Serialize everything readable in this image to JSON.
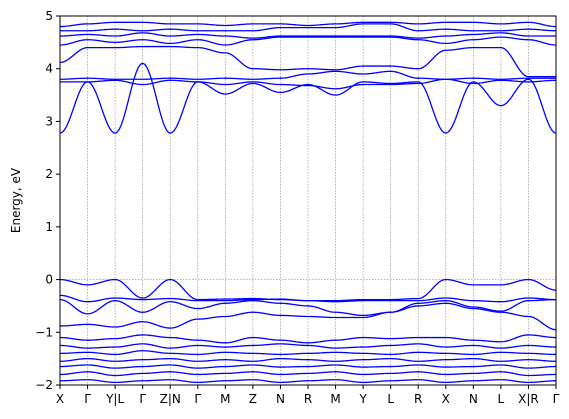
{
  "chart_data": {
    "type": "line",
    "ylabel": "Energy, eV",
    "xlabel": "",
    "ylim": [
      -2,
      5
    ],
    "y_ticks": [
      -2,
      -1,
      0,
      1,
      2,
      3,
      4,
      5
    ],
    "k_points": [
      "X",
      "Γ",
      "Y|L",
      "Γ",
      "Z|N",
      "Γ",
      "M",
      "Z",
      "N",
      "R",
      "M",
      "Y",
      "L",
      "R",
      "X",
      "N",
      "L",
      "X|R",
      "Γ"
    ],
    "fermi_level": 0,
    "grid": "vertical dotted lines at k-points",
    "line_color": "#0000ff",
    "series": [
      {
        "values": [
          0.0,
          -0.1,
          0.0,
          -0.35,
          0.0,
          -0.38,
          -0.37,
          -0.36,
          -0.38,
          -0.4,
          -0.4,
          -0.38,
          -0.38,
          -0.36,
          0.0,
          -0.1,
          -0.1,
          0.0,
          -0.2
        ]
      },
      {
        "values": [
          -0.3,
          -0.42,
          -0.35,
          -0.38,
          -0.36,
          -0.4,
          -0.4,
          -0.38,
          -0.37,
          -0.4,
          -0.42,
          -0.4,
          -0.4,
          -0.4,
          -0.35,
          -0.4,
          -0.42,
          -0.35,
          -0.38
        ]
      },
      {
        "values": [
          -0.38,
          -0.65,
          -0.4,
          -0.62,
          -0.42,
          -0.55,
          -0.45,
          -0.4,
          -0.45,
          -0.5,
          -0.62,
          -0.68,
          -0.62,
          -0.45,
          -0.4,
          -0.52,
          -0.6,
          -0.4,
          -0.38
        ]
      },
      {
        "values": [
          -0.88,
          -0.85,
          -0.9,
          -0.8,
          -0.92,
          -0.75,
          -0.7,
          -0.62,
          -0.68,
          -0.7,
          -0.72,
          -0.72,
          -0.62,
          -0.5,
          -0.45,
          -0.55,
          -0.62,
          -0.7,
          -0.95
        ]
      },
      {
        "values": [
          -1.1,
          -1.15,
          -1.12,
          -1.05,
          -1.1,
          -1.15,
          -1.2,
          -1.1,
          -1.15,
          -1.2,
          -1.15,
          -1.1,
          -1.12,
          -1.1,
          -1.1,
          -1.15,
          -1.18,
          -1.05,
          -1.1
        ]
      },
      {
        "values": [
          -1.25,
          -1.3,
          -1.28,
          -1.22,
          -1.3,
          -1.25,
          -1.28,
          -1.25,
          -1.22,
          -1.25,
          -1.3,
          -1.28,
          -1.25,
          -1.22,
          -1.28,
          -1.25,
          -1.3,
          -1.25,
          -1.28
        ]
      },
      {
        "values": [
          -1.4,
          -1.38,
          -1.42,
          -1.35,
          -1.4,
          -1.42,
          -1.38,
          -1.4,
          -1.42,
          -1.4,
          -1.38,
          -1.4,
          -1.42,
          -1.38,
          -1.4,
          -1.42,
          -1.38,
          -1.4,
          -1.42
        ]
      },
      {
        "values": [
          -1.55,
          -1.5,
          -1.55,
          -1.52,
          -1.5,
          -1.55,
          -1.52,
          -1.55,
          -1.5,
          -1.52,
          -1.55,
          -1.52,
          -1.5,
          -1.55,
          -1.52,
          -1.5,
          -1.55,
          -1.52,
          -1.55
        ]
      },
      {
        "values": [
          -1.65,
          -1.62,
          -1.68,
          -1.65,
          -1.62,
          -1.68,
          -1.65,
          -1.62,
          -1.66,
          -1.65,
          -1.62,
          -1.66,
          -1.65,
          -1.62,
          -1.66,
          -1.65,
          -1.62,
          -1.68,
          -1.65
        ]
      },
      {
        "values": [
          -1.8,
          -1.75,
          -1.82,
          -1.78,
          -1.75,
          -1.8,
          -1.78,
          -1.75,
          -1.8,
          -1.78,
          -1.75,
          -1.8,
          -1.78,
          -1.75,
          -1.8,
          -1.78,
          -1.75,
          -1.82,
          -1.8
        ]
      },
      {
        "values": [
          -1.92,
          -1.9,
          -1.95,
          -1.92,
          -1.9,
          -1.95,
          -1.92,
          -1.9,
          -1.95,
          -1.92,
          -1.9,
          -1.95,
          -1.92,
          -1.9,
          -1.95,
          -1.92,
          -1.9,
          -1.95,
          -1.92
        ]
      },
      {
        "values": [
          2.78,
          3.75,
          2.78,
          4.1,
          2.78,
          3.75,
          3.52,
          3.72,
          3.55,
          3.7,
          3.5,
          3.75,
          3.72,
          3.75,
          2.78,
          3.75,
          3.3,
          3.8,
          2.78
        ]
      },
      {
        "values": [
          3.75,
          3.75,
          3.78,
          3.7,
          3.78,
          3.75,
          3.7,
          3.75,
          3.7,
          3.68,
          3.62,
          3.7,
          3.7,
          3.72,
          3.8,
          3.72,
          3.78,
          3.75,
          3.78
        ]
      },
      {
        "values": [
          3.8,
          3.82,
          3.8,
          3.8,
          3.82,
          3.8,
          3.82,
          3.8,
          3.82,
          3.9,
          3.95,
          3.9,
          3.95,
          3.82,
          3.8,
          3.82,
          3.8,
          3.82,
          3.82
        ]
      },
      {
        "values": [
          4.12,
          4.4,
          4.4,
          4.42,
          4.42,
          4.4,
          4.3,
          4.0,
          3.98,
          4.0,
          3.98,
          4.05,
          4.05,
          4.0,
          4.35,
          4.4,
          4.4,
          3.85,
          3.85
        ]
      },
      {
        "values": [
          4.45,
          4.55,
          4.5,
          4.55,
          4.48,
          4.55,
          4.45,
          4.55,
          4.6,
          4.6,
          4.6,
          4.6,
          4.6,
          4.55,
          4.48,
          4.55,
          4.6,
          4.55,
          4.45
        ]
      },
      {
        "values": [
          4.62,
          4.65,
          4.62,
          4.68,
          4.62,
          4.65,
          4.62,
          4.58,
          4.62,
          4.62,
          4.62,
          4.62,
          4.62,
          4.58,
          4.62,
          4.65,
          4.68,
          4.62,
          4.62
        ]
      },
      {
        "values": [
          4.72,
          4.72,
          4.75,
          4.72,
          4.75,
          4.72,
          4.72,
          4.72,
          4.78,
          4.78,
          4.78,
          4.85,
          4.85,
          4.72,
          4.75,
          4.72,
          4.72,
          4.75,
          4.72
        ]
      },
      {
        "values": [
          4.8,
          4.85,
          4.88,
          4.88,
          4.85,
          4.85,
          4.82,
          4.85,
          4.85,
          4.82,
          4.85,
          4.88,
          4.88,
          4.85,
          4.88,
          4.88,
          4.85,
          4.88,
          4.8
        ]
      }
    ]
  }
}
